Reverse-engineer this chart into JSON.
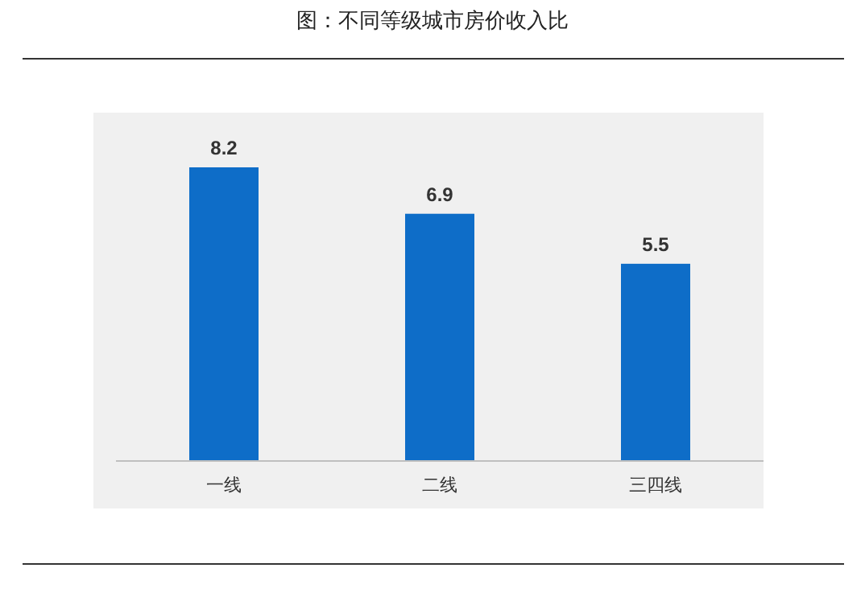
{
  "chart_data": {
    "type": "bar",
    "title": "图：不同等级城市房价收入比",
    "categories": [
      "一线",
      "二线",
      "三四线"
    ],
    "values": [
      8.2,
      6.9,
      5.5
    ],
    "color": "#0e6dc8",
    "data_labels": true
  }
}
